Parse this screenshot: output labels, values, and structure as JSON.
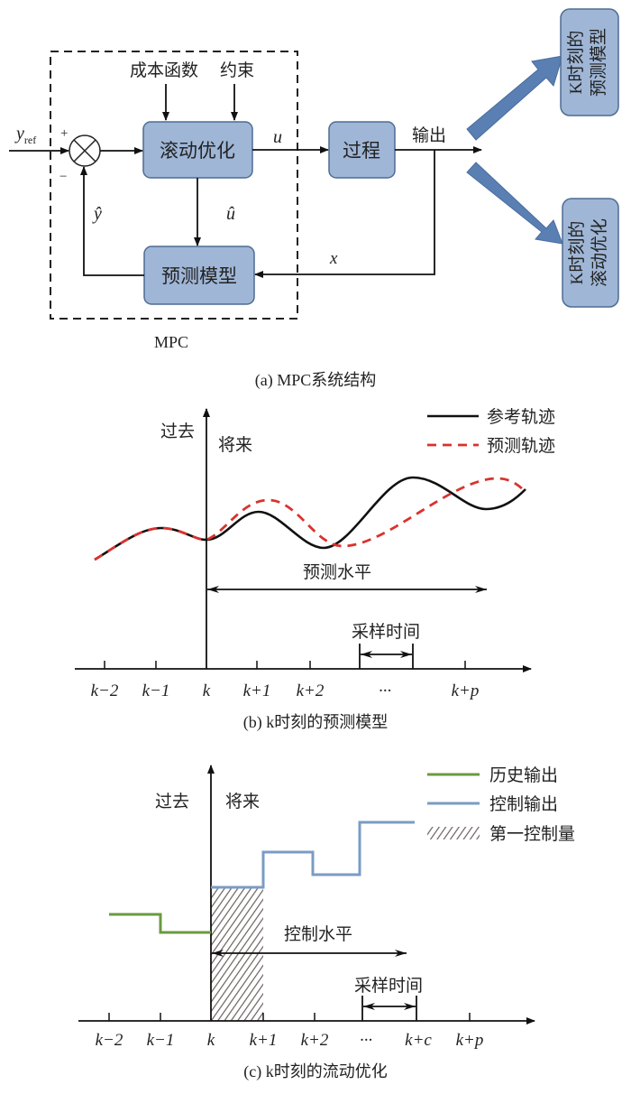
{
  "panel_a": {
    "cost_function": "成本函数",
    "constraint": "约束",
    "rolling_opt": "滚动优化",
    "process": "过程",
    "prediction_model": "预测模型",
    "output": "输出",
    "y_ref": "y",
    "y_ref_sub": "ref",
    "plus": "+",
    "minus": "−",
    "u": "u",
    "u_hat": "û",
    "y_hat": "ŷ",
    "x": "x",
    "mpc": "MPC",
    "right_top_line1": "K时刻的",
    "right_top_line2": "预测模型",
    "right_bottom_line1": "K时刻的",
    "right_bottom_line2": "滚动优化",
    "caption": "(a) MPC系统结构",
    "colors": {
      "box": "#9fb6d6",
      "arrow": "#5a7fb3"
    }
  },
  "panel_b": {
    "past": "过去",
    "future": "将来",
    "legend": [
      "参考轨迹",
      "预测轨迹"
    ],
    "horizon": "预测水平",
    "sample_time": "采样时间",
    "ticks": [
      "k−2",
      "k−1",
      "k",
      "k+1",
      "k+2",
      "···",
      "k+p"
    ],
    "caption": "(b) k时刻的预测模型",
    "colors": {
      "reference": "#111111",
      "predicted": "#d9322e"
    }
  },
  "panel_c": {
    "past": "过去",
    "future": "将来",
    "legend": [
      "历史输出",
      "控制输出",
      "第一控制量"
    ],
    "horizon": "控制水平",
    "sample_time": "采样时间",
    "ticks": [
      "k−2",
      "k−1",
      "k",
      "k+1",
      "k+2",
      "···",
      "k+c",
      "k+p"
    ],
    "caption": "(c) k时刻的流动优化",
    "colors": {
      "history": "#6a9a3f",
      "control": "#7a9cc4"
    }
  }
}
